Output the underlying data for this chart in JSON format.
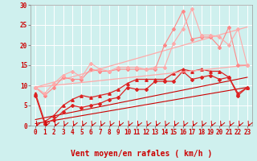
{
  "background_color": "#cff0ee",
  "grid_color": "#ffffff",
  "xlabel": "Vent moyen/en rafales ( km/h )",
  "xlim": [
    -0.5,
    23.5
  ],
  "ylim": [
    0,
    30
  ],
  "xticks": [
    0,
    1,
    2,
    3,
    4,
    5,
    6,
    7,
    8,
    9,
    10,
    11,
    12,
    13,
    14,
    15,
    16,
    17,
    18,
    19,
    20,
    21,
    22,
    23
  ],
  "yticks": [
    0,
    5,
    10,
    15,
    20,
    25,
    30
  ],
  "tick_label_color": "#cc0000",
  "tick_label_fontsize": 5.5,
  "xlabel_fontsize": 7,
  "series": [
    {
      "x": [
        0,
        23
      ],
      "y": [
        0.5,
        9.5
      ],
      "color": "#cc0000",
      "lw": 0.8,
      "marker": null,
      "ms": 0,
      "alpha": 1.0
    },
    {
      "x": [
        0,
        23
      ],
      "y": [
        1.5,
        12.0
      ],
      "color": "#cc0000",
      "lw": 0.8,
      "marker": null,
      "ms": 0,
      "alpha": 1.0
    },
    {
      "x": [
        0,
        1,
        2,
        3,
        4,
        5,
        6,
        7,
        8,
        9,
        10,
        11,
        12,
        13,
        14,
        15,
        16,
        17,
        18,
        19,
        20,
        21,
        22,
        23
      ],
      "y": [
        7.5,
        0.5,
        1.5,
        3.5,
        5.0,
        4.5,
        5.0,
        5.5,
        6.5,
        7.0,
        9.5,
        9.0,
        9.0,
        11.0,
        11.0,
        11.0,
        13.5,
        11.5,
        12.0,
        12.5,
        11.5,
        12.0,
        7.5,
        9.5
      ],
      "color": "#dd2222",
      "lw": 0.9,
      "marker": "D",
      "ms": 2.0,
      "alpha": 1.0
    },
    {
      "x": [
        0,
        1,
        2,
        3,
        4,
        5,
        6,
        7,
        8,
        9,
        10,
        11,
        12,
        13,
        14,
        15,
        16,
        17,
        18,
        19,
        20,
        21,
        22,
        23
      ],
      "y": [
        8.0,
        1.0,
        2.5,
        5.0,
        6.5,
        7.5,
        7.0,
        7.5,
        8.0,
        9.0,
        10.5,
        11.5,
        11.5,
        11.5,
        11.5,
        13.0,
        14.0,
        13.5,
        14.0,
        13.5,
        13.5,
        12.0,
        8.0,
        9.5
      ],
      "color": "#dd2222",
      "lw": 0.9,
      "marker": "^",
      "ms": 2.5,
      "alpha": 1.0
    },
    {
      "x": [
        0,
        23
      ],
      "y": [
        9.5,
        15.0
      ],
      "color": "#ffaaaa",
      "lw": 0.9,
      "marker": null,
      "ms": 0,
      "alpha": 1.0
    },
    {
      "x": [
        0,
        23
      ],
      "y": [
        9.5,
        24.5
      ],
      "color": "#ffaaaa",
      "lw": 0.9,
      "marker": null,
      "ms": 0,
      "alpha": 1.0
    },
    {
      "x": [
        0,
        1,
        2,
        3,
        4,
        5,
        6,
        7,
        8,
        9,
        10,
        11,
        12,
        13,
        14,
        15,
        16,
        17,
        18,
        19,
        20,
        21,
        22,
        23
      ],
      "y": [
        9.5,
        7.5,
        9.5,
        12.0,
        11.5,
        11.5,
        14.0,
        13.5,
        13.5,
        14.0,
        14.0,
        14.0,
        14.0,
        14.0,
        20.0,
        24.0,
        28.5,
        21.5,
        22.0,
        22.0,
        19.5,
        24.5,
        15.0,
        15.0
      ],
      "color": "#ff8888",
      "lw": 0.8,
      "marker": "D",
      "ms": 2.0,
      "alpha": 1.0
    },
    {
      "x": [
        0,
        1,
        2,
        3,
        4,
        5,
        6,
        7,
        8,
        9,
        10,
        11,
        12,
        13,
        14,
        15,
        16,
        17,
        18,
        19,
        20,
        21,
        22,
        23
      ],
      "y": [
        9.5,
        8.0,
        10.5,
        12.5,
        13.5,
        12.0,
        15.5,
        14.0,
        13.5,
        14.5,
        14.5,
        14.5,
        14.0,
        14.5,
        14.5,
        20.5,
        24.0,
        29.0,
        22.5,
        22.5,
        22.0,
        20.0,
        24.0,
        15.0
      ],
      "color": "#ffaaaa",
      "lw": 0.8,
      "marker": "D",
      "ms": 2.0,
      "alpha": 1.0
    }
  ]
}
